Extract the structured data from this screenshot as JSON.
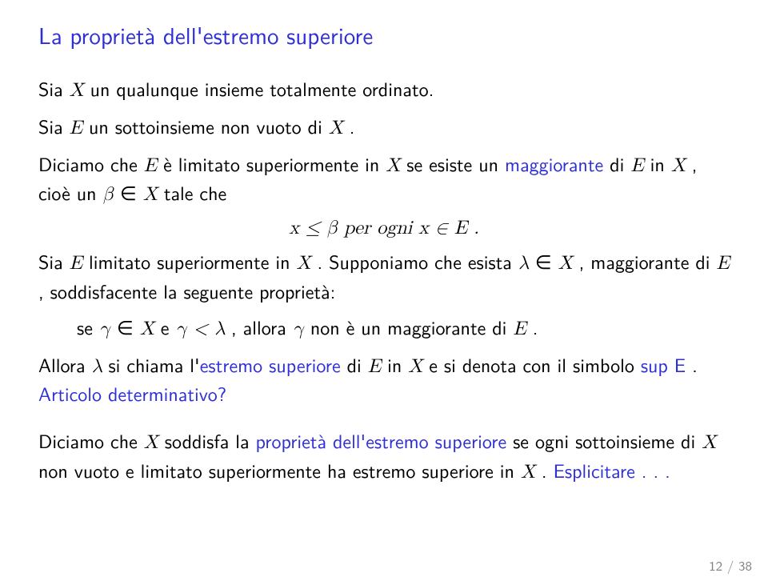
{
  "title": "La proprietà dell'estremo superiore",
  "p1_a": "Sia ",
  "p1_X": "X",
  "p1_b": " un qualunque insieme totalmente ordinato.",
  "p2_a": "Sia ",
  "p2_E": "E",
  "p2_b": " un sottoinsieme non vuoto di ",
  "p2_X": "X",
  "p2_c": " .",
  "p3_a": "Diciamo che ",
  "p3_E": "E",
  "p3_b": " è limitato superiormente in ",
  "p3_X": "X",
  "p3_c": " se esiste un ",
  "p3_magg": "maggiorante",
  "p3_d": " di ",
  "p3_E2": "E",
  "p3_e": " in ",
  "p3_X2": "X",
  "p3_f": " , cioè un ",
  "p3_beta": "β",
  "p3_in": " ∈ ",
  "p3_X3": "X",
  "p3_g": " tale che",
  "disp1": "x ≤ β  per ogni  x ∈ E .",
  "p4_a": "Sia ",
  "p4_E": "E",
  "p4_b": " limitato superiormente in ",
  "p4_X": "X",
  "p4_c": " .  Supponiamo che esista ",
  "p4_lam": "λ",
  "p4_in": " ∈ ",
  "p4_X2": "X",
  "p4_d": " , maggiorante di ",
  "p4_E2": "E",
  "p4_e": " , soddisfacente la seguente proprietà:",
  "p5_a": "se ",
  "p5_gam": "γ",
  "p5_in": " ∈ ",
  "p5_X": "X",
  "p5_b": "  e  ",
  "p5_gam2": "γ",
  "p5_lt": " < ",
  "p5_lam": "λ",
  "p5_c": " ,  allora ",
  "p5_gam3": "γ",
  "p5_d": "  non è un maggiorante di ",
  "p5_E": "E",
  "p5_e": " .",
  "p6_a": "Allora ",
  "p6_lam": "λ",
  "p6_b": " si chiama l'",
  "p6_esup": "estremo superiore",
  "p6_c": " di ",
  "p6_E": "E",
  "p6_d": " in ",
  "p6_X": "X",
  "p6_e": " e si denota con il simbolo ",
  "p6_sup": "sup E",
  "p6_f": " .     ",
  "p6_art": "Articolo determinativo?",
  "p7_a": "Diciamo che ",
  "p7_X": "X",
  "p7_b": " soddisfa la ",
  "p7_prop": "proprietà dell'estremo superiore",
  "p7_c": " se ogni sottoinsieme di ",
  "p7_X2": "X",
  "p7_d": " non vuoto e limitato superiormente ha estremo superiore in ",
  "p7_X3": "X",
  "p7_e": " .    ",
  "p7_expl": "Esplicitare . . .",
  "page": "12 / 38"
}
